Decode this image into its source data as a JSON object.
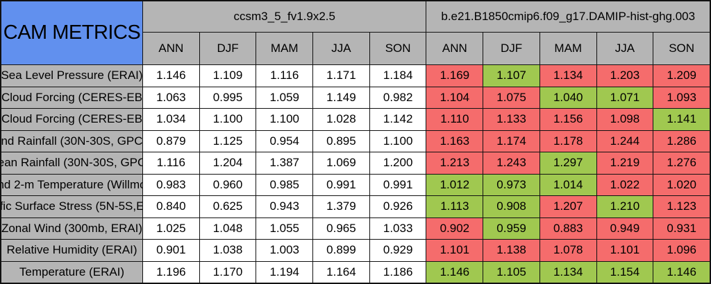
{
  "chart_data": {
    "type": "table",
    "title": "CAM METRICS",
    "column_groups": [
      {
        "name": "ccsm3_5_fv1.9x2.5"
      },
      {
        "name": "b.e21.B1850cmip6.f09_g17.DAMIP-hist-ghg.003"
      }
    ],
    "season_columns": [
      "ANN",
      "DJF",
      "MAM",
      "JJA",
      "SON"
    ],
    "rows": [
      {
        "label": "Sea Level Pressure (ERAI)",
        "model1": [
          "1.146",
          "1.109",
          "1.116",
          "1.171",
          "1.184"
        ],
        "model2": [
          "1.169",
          "1.107",
          "1.134",
          "1.203",
          "1.209"
        ],
        "model2_colors": [
          "red",
          "green",
          "red",
          "red",
          "red"
        ]
      },
      {
        "label": "Cloud Forcing (CERES-EB",
        "model1": [
          "1.063",
          "0.995",
          "1.059",
          "1.149",
          "0.982"
        ],
        "model2": [
          "1.104",
          "1.075",
          "1.040",
          "1.071",
          "1.093"
        ],
        "model2_colors": [
          "red",
          "red",
          "green",
          "green",
          "red"
        ]
      },
      {
        "label": "Cloud Forcing (CERES-EB",
        "model1": [
          "1.034",
          "1.100",
          "1.100",
          "1.028",
          "1.142"
        ],
        "model2": [
          "1.110",
          "1.133",
          "1.156",
          "1.098",
          "1.141"
        ],
        "model2_colors": [
          "red",
          "red",
          "red",
          "red",
          "green"
        ]
      },
      {
        "label": "nd Rainfall (30N-30S, GPC",
        "model1": [
          "0.879",
          "1.125",
          "0.954",
          "0.895",
          "1.100"
        ],
        "model2": [
          "1.163",
          "1.174",
          "1.178",
          "1.244",
          "1.286"
        ],
        "model2_colors": [
          "red",
          "red",
          "red",
          "red",
          "red"
        ]
      },
      {
        "label": "ean Rainfall (30N-30S, GPC",
        "model1": [
          "1.116",
          "1.204",
          "1.387",
          "1.069",
          "1.200"
        ],
        "model2": [
          "1.213",
          "1.243",
          "1.297",
          "1.219",
          "1.276"
        ],
        "model2_colors": [
          "red",
          "red",
          "green",
          "red",
          "red"
        ]
      },
      {
        "label": "nd 2-m Temperature (Willmo",
        "model1": [
          "0.983",
          "0.960",
          "0.985",
          "0.991",
          "0.991"
        ],
        "model2": [
          "1.012",
          "0.973",
          "1.014",
          "1.022",
          "1.020"
        ],
        "model2_colors": [
          "green",
          "green",
          "green",
          "red",
          "red"
        ]
      },
      {
        "label": "fic Surface Stress (5N-5S,E",
        "model1": [
          "0.840",
          "0.625",
          "0.943",
          "1.379",
          "0.926"
        ],
        "model2": [
          "1.113",
          "0.908",
          "1.207",
          "1.210",
          "1.123"
        ],
        "model2_colors": [
          "green",
          "green",
          "red",
          "green",
          "red"
        ]
      },
      {
        "label": "Zonal Wind (300mb, ERAI)",
        "model1": [
          "1.025",
          "1.048",
          "1.055",
          "0.965",
          "1.033"
        ],
        "model2": [
          "0.902",
          "0.959",
          "0.883",
          "0.949",
          "0.931"
        ],
        "model2_colors": [
          "red",
          "green",
          "red",
          "red",
          "red"
        ]
      },
      {
        "label": "Relative Humidity (ERAI)",
        "model1": [
          "0.901",
          "1.038",
          "1.003",
          "0.899",
          "0.929"
        ],
        "model2": [
          "1.101",
          "1.138",
          "1.078",
          "1.101",
          "1.096"
        ],
        "model2_colors": [
          "red",
          "red",
          "red",
          "red",
          "red"
        ]
      },
      {
        "label": "Temperature (ERAI)",
        "model1": [
          "1.196",
          "1.170",
          "1.194",
          "1.164",
          "1.186"
        ],
        "model2": [
          "1.146",
          "1.105",
          "1.134",
          "1.154",
          "1.146"
        ],
        "model2_colors": [
          "green",
          "green",
          "green",
          "green",
          "green"
        ]
      }
    ]
  },
  "colors": {
    "blue": "#6190ee",
    "header_gray": "#b5b5b5",
    "red": "#f56c6c",
    "green": "#a0c850",
    "grid_line": "#111111"
  }
}
